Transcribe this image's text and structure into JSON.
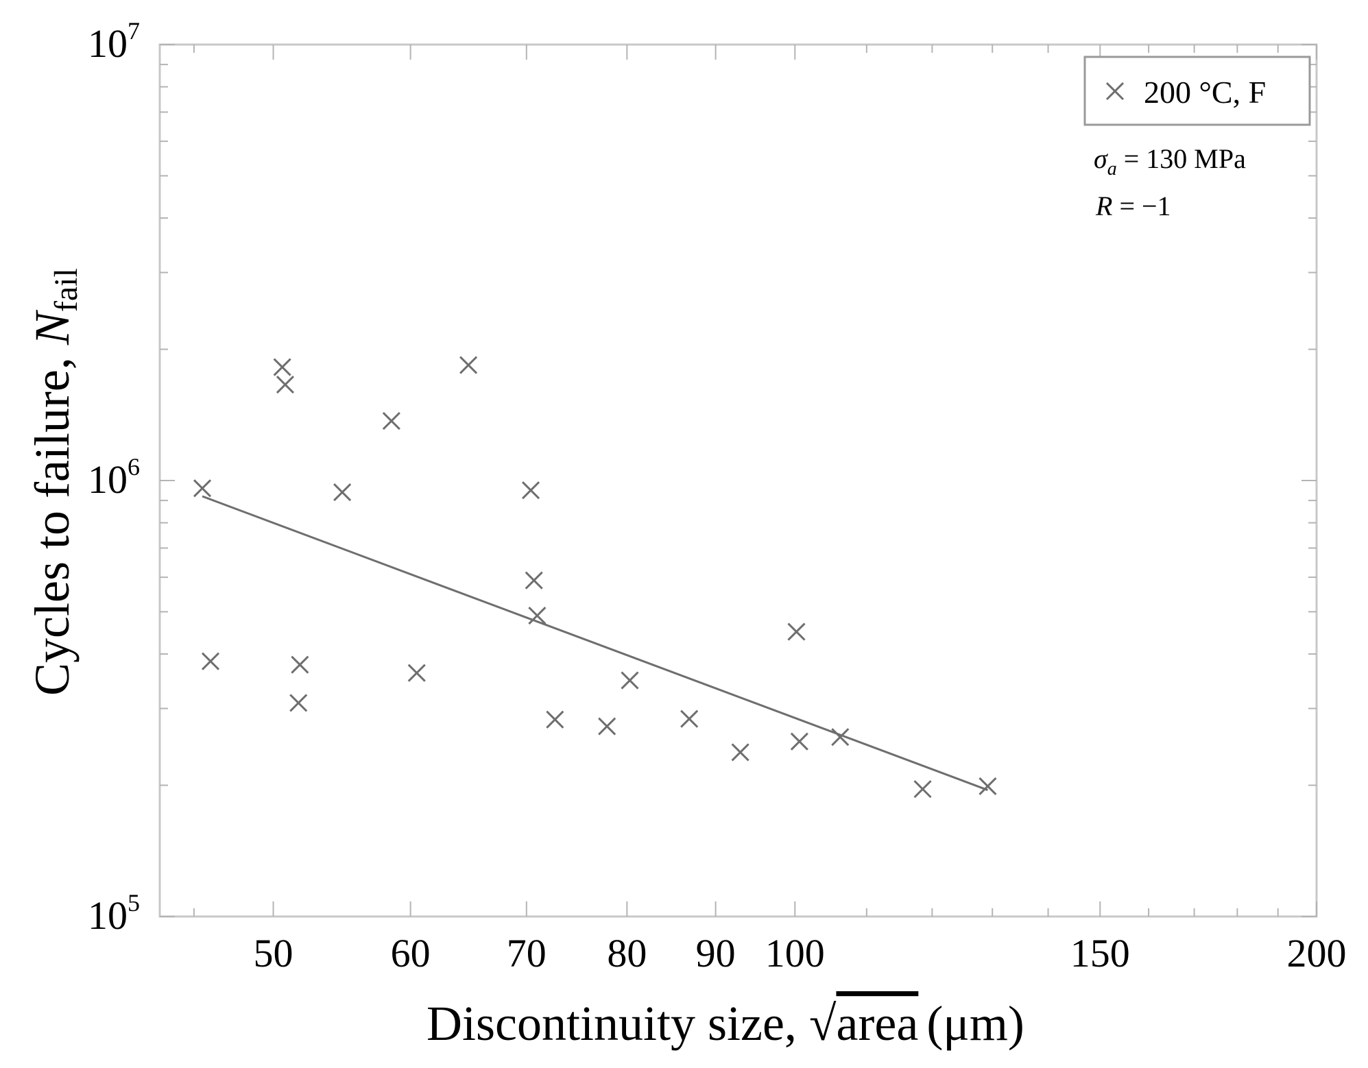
{
  "chart_data": {
    "type": "scatter",
    "xscale": "log",
    "yscale": "log",
    "xlim": [
      43,
      200
    ],
    "ylim": [
      100000,
      10000000
    ],
    "xlabel": "Discontinuity size, √area (μm)",
    "xlabel_prefix": "Discontinuity size, ",
    "xlabel_sqrt_arg": "area",
    "xlabel_unit": "(μm)",
    "ylabel": "Cycles to failure, N_fail",
    "ylabel_prefix": "Cycles to failure, ",
    "ylabel_symbol": "N",
    "ylabel_subscript": "fail",
    "x_ticks": [
      50,
      60,
      70,
      80,
      90,
      100,
      150,
      200
    ],
    "x_tick_labels": [
      "50",
      "60",
      "70",
      "80",
      "90",
      "100",
      "150",
      "200"
    ],
    "y_ticks": [
      {
        "value": 100000,
        "base": "10",
        "exponent": "5"
      },
      {
        "value": 1000000,
        "base": "10",
        "exponent": "6"
      },
      {
        "value": 10000000,
        "base": "10",
        "exponent": "7"
      }
    ],
    "legend": {
      "marker": "×",
      "label": "200 °C, F",
      "position": "top-right"
    },
    "annotations": [
      "σa = 130 MPa",
      "R = −1"
    ],
    "annotation_sigma": {
      "symbol": "σ",
      "subscript": "a",
      "rest": " = 130 MPa"
    },
    "annotation_r": {
      "symbol": "R",
      "rest": " = −1"
    },
    "series": [
      {
        "name": "200 °C, F",
        "marker": "x",
        "points": [
          {
            "x": 45.5,
            "y": 960000
          },
          {
            "x": 46.0,
            "y": 385000
          },
          {
            "x": 50.6,
            "y": 1820000
          },
          {
            "x": 50.8,
            "y": 1660000
          },
          {
            "x": 51.8,
            "y": 378000
          },
          {
            "x": 51.7,
            "y": 309000
          },
          {
            "x": 54.8,
            "y": 940000
          },
          {
            "x": 58.5,
            "y": 1370000
          },
          {
            "x": 60.5,
            "y": 362000
          },
          {
            "x": 64.8,
            "y": 1840000
          },
          {
            "x": 70.4,
            "y": 950000
          },
          {
            "x": 70.7,
            "y": 590000
          },
          {
            "x": 71.0,
            "y": 490000
          },
          {
            "x": 72.7,
            "y": 283000
          },
          {
            "x": 77.9,
            "y": 273000
          },
          {
            "x": 80.3,
            "y": 348000
          },
          {
            "x": 86.9,
            "y": 284000
          },
          {
            "x": 93.0,
            "y": 238000
          },
          {
            "x": 100.2,
            "y": 450000
          },
          {
            "x": 100.6,
            "y": 252000
          },
          {
            "x": 106.2,
            "y": 258000
          },
          {
            "x": 118.5,
            "y": 196000
          },
          {
            "x": 129.2,
            "y": 199000
          }
        ]
      }
    ],
    "fit_line": {
      "x": [
        45.5,
        129.2
      ],
      "y": [
        920000,
        195000
      ]
    }
  }
}
